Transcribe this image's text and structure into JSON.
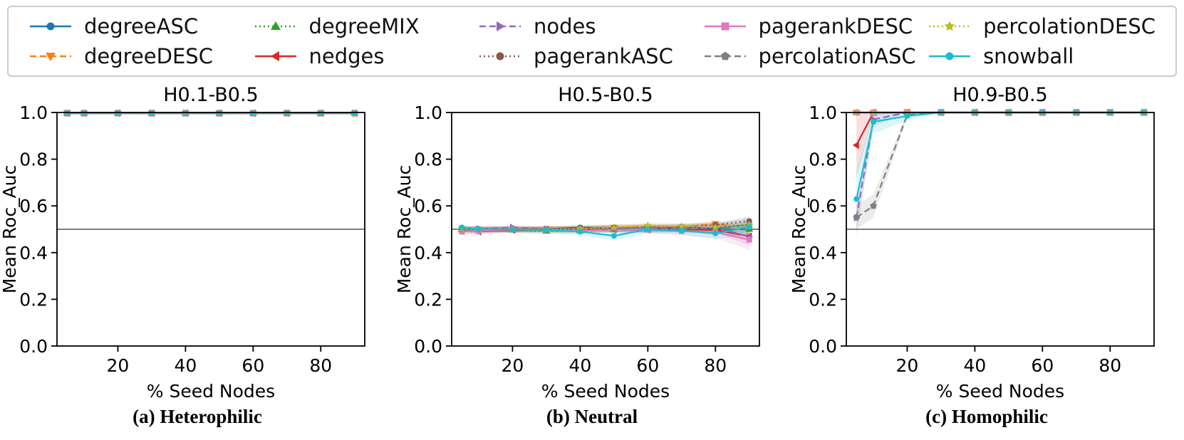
{
  "legend_series": [
    {
      "name": "degreeASC",
      "color": "#1f77b4",
      "linestyle": "solid",
      "marker": "circle"
    },
    {
      "name": "degreeDESC",
      "color": "#ff7f0e",
      "linestyle": "dashed",
      "marker": "triangle-down"
    },
    {
      "name": "degreeMIX",
      "color": "#2ca02c",
      "linestyle": "dotted",
      "marker": "triangle-up"
    },
    {
      "name": "nedges",
      "color": "#d62728",
      "linestyle": "solid",
      "marker": "triangle-left"
    },
    {
      "name": "nodes",
      "color": "#9467bd",
      "linestyle": "dashed",
      "marker": "triangle-right"
    },
    {
      "name": "pagerankASC",
      "color": "#8c564b",
      "linestyle": "dotted",
      "marker": "circle"
    },
    {
      "name": "pagerankDESC",
      "color": "#e377c2",
      "linestyle": "solid",
      "marker": "square"
    },
    {
      "name": "percolationASC",
      "color": "#7f7f7f",
      "linestyle": "dashed",
      "marker": "pentagon"
    },
    {
      "name": "percolationDESC",
      "color": "#bcbd22",
      "linestyle": "dotted",
      "marker": "star"
    },
    {
      "name": "snowball",
      "color": "#17becf",
      "linestyle": "solid",
      "marker": "circle"
    }
  ],
  "chart_data": [
    {
      "type": "line",
      "title": "H0.1-B0.5",
      "caption": "(a) Heterophilic",
      "xlabel": "% Seed Nodes",
      "ylabel": "Mean Roc_Auc",
      "x": [
        5,
        10,
        20,
        30,
        40,
        50,
        60,
        70,
        80,
        90
      ],
      "xlim": [
        2,
        93
      ],
      "ylim": [
        0,
        1
      ],
      "xticks": [
        20,
        40,
        60,
        80
      ],
      "yticks": [
        0,
        0.2,
        0.4,
        0.6,
        0.8,
        1.0
      ],
      "refline": 0.5,
      "band_default": 0.004,
      "values": {
        "degreeASC": 0.997,
        "degreeDESC": 0.997,
        "degreeMIX": 0.997,
        "nedges": 0.997,
        "nodes": 0.997,
        "pagerankASC": 0.997,
        "pagerankDESC": 0.997,
        "percolationASC": 0.997,
        "percolationDESC": 0.997,
        "snowball": 0.997
      },
      "bands": {}
    },
    {
      "type": "line",
      "title": "H0.5-B0.5",
      "caption": "(b) Neutral",
      "xlabel": "% Seed Nodes",
      "ylabel": "Mean Roc_Auc",
      "x": [
        5,
        10,
        20,
        30,
        40,
        50,
        60,
        70,
        80,
        90
      ],
      "xlim": [
        2,
        93
      ],
      "ylim": [
        0,
        1
      ],
      "xticks": [
        20,
        40,
        60,
        80
      ],
      "yticks": [
        0,
        0.2,
        0.4,
        0.6,
        0.8,
        1.0
      ],
      "refline": 0.5,
      "band_default": 0.012,
      "values": {
        "degreeASC": [
          0.502,
          0.5,
          0.498,
          0.5,
          0.508,
          0.503,
          0.5,
          0.51,
          0.503,
          0.52
        ],
        "degreeDESC": [
          0.5,
          0.499,
          0.501,
          0.5,
          0.502,
          0.508,
          0.51,
          0.508,
          0.524,
          0.5
        ],
        "degreeMIX": [
          0.5,
          0.498,
          0.497,
          0.492,
          0.494,
          0.499,
          0.498,
          0.5,
          0.497,
          0.5
        ],
        "nedges": [
          0.492,
          0.49,
          0.497,
          0.499,
          0.5,
          0.499,
          0.498,
          0.5,
          0.497,
          0.47
        ],
        "nodes": [
          0.5,
          0.501,
          0.508,
          0.5,
          0.499,
          0.502,
          0.505,
          0.5,
          0.508,
          0.468
        ],
        "pagerankASC": [
          0.5,
          0.501,
          0.5,
          0.502,
          0.503,
          0.508,
          0.509,
          0.51,
          0.519,
          0.535
        ],
        "pagerankDESC": [
          0.49,
          0.492,
          0.499,
          0.498,
          0.494,
          0.499,
          0.498,
          0.492,
          0.488,
          0.455
        ],
        "percolationASC": [
          0.5,
          0.5,
          0.499,
          0.5,
          0.501,
          0.5,
          0.509,
          0.502,
          0.508,
          0.518
        ],
        "percolationDESC": [
          0.5,
          0.5,
          0.5,
          0.499,
          0.502,
          0.507,
          0.517,
          0.513,
          0.508,
          0.52
        ],
        "snowball": [
          0.508,
          0.5,
          0.499,
          0.497,
          0.49,
          0.472,
          0.499,
          0.494,
          0.482,
          0.51
        ]
      },
      "bands": {
        "degreeASC": [
          0.01,
          0.01,
          0.01,
          0.01,
          0.01,
          0.012,
          0.012,
          0.015,
          0.02,
          0.035
        ],
        "nodes": [
          0.01,
          0.01,
          0.01,
          0.01,
          0.01,
          0.012,
          0.012,
          0.015,
          0.02,
          0.04
        ],
        "pagerankDESC": [
          0.01,
          0.01,
          0.01,
          0.01,
          0.01,
          0.012,
          0.015,
          0.02,
          0.025,
          0.045
        ],
        "snowball": [
          0.012,
          0.01,
          0.01,
          0.012,
          0.015,
          0.02,
          0.015,
          0.015,
          0.025,
          0.03
        ]
      }
    },
    {
      "type": "line",
      "title": "H0.9-B0.5",
      "caption": "(c) Homophilic",
      "xlabel": "% Seed Nodes",
      "ylabel": "Mean Roc_Auc",
      "x": [
        5,
        10,
        20,
        30,
        40,
        50,
        60,
        70,
        80,
        90
      ],
      "xlim": [
        2,
        93
      ],
      "ylim": [
        0,
        1
      ],
      "xticks": [
        20,
        40,
        60,
        80
      ],
      "yticks": [
        0,
        0.2,
        0.4,
        0.6,
        0.8,
        1.0
      ],
      "refline": 0.5,
      "band_default": 0.0,
      "values": {
        "degreeASC": 1.0,
        "degreeDESC": 1.0,
        "degreeMIX": 1.0,
        "nedges": [
          0.86,
          1.0,
          1.0,
          1.0,
          1.0,
          1.0,
          1.0,
          1.0,
          1.0,
          1.0
        ],
        "nodes": [
          0.55,
          0.97,
          1.0,
          1.0,
          1.0,
          1.0,
          1.0,
          1.0,
          1.0,
          1.0
        ],
        "pagerankASC": 1.0,
        "pagerankDESC": 1.0,
        "percolationASC": [
          0.55,
          0.6,
          0.99,
          1.0,
          1.0,
          1.0,
          1.0,
          1.0,
          1.0,
          1.0
        ],
        "percolationDESC": 1.0,
        "snowball": [
          0.63,
          0.96,
          0.985,
          1.0,
          1.0,
          1.0,
          1.0,
          1.0,
          1.0,
          1.0
        ]
      },
      "bands": {
        "nedges": [
          0.14,
          0.01,
          0,
          0,
          0,
          0,
          0,
          0,
          0,
          0
        ],
        "nodes": [
          0.08,
          0.03,
          0,
          0,
          0,
          0,
          0,
          0,
          0,
          0
        ],
        "percolationASC": [
          0.05,
          0.05,
          0.01,
          0,
          0,
          0,
          0,
          0,
          0,
          0
        ],
        "snowball": [
          0.12,
          0.05,
          0.02,
          0,
          0,
          0,
          0,
          0,
          0,
          0
        ]
      }
    }
  ],
  "captions": {
    "a": "(a) Heterophilic",
    "b": "(b) Neutral",
    "c": "(c) Homophilic"
  }
}
